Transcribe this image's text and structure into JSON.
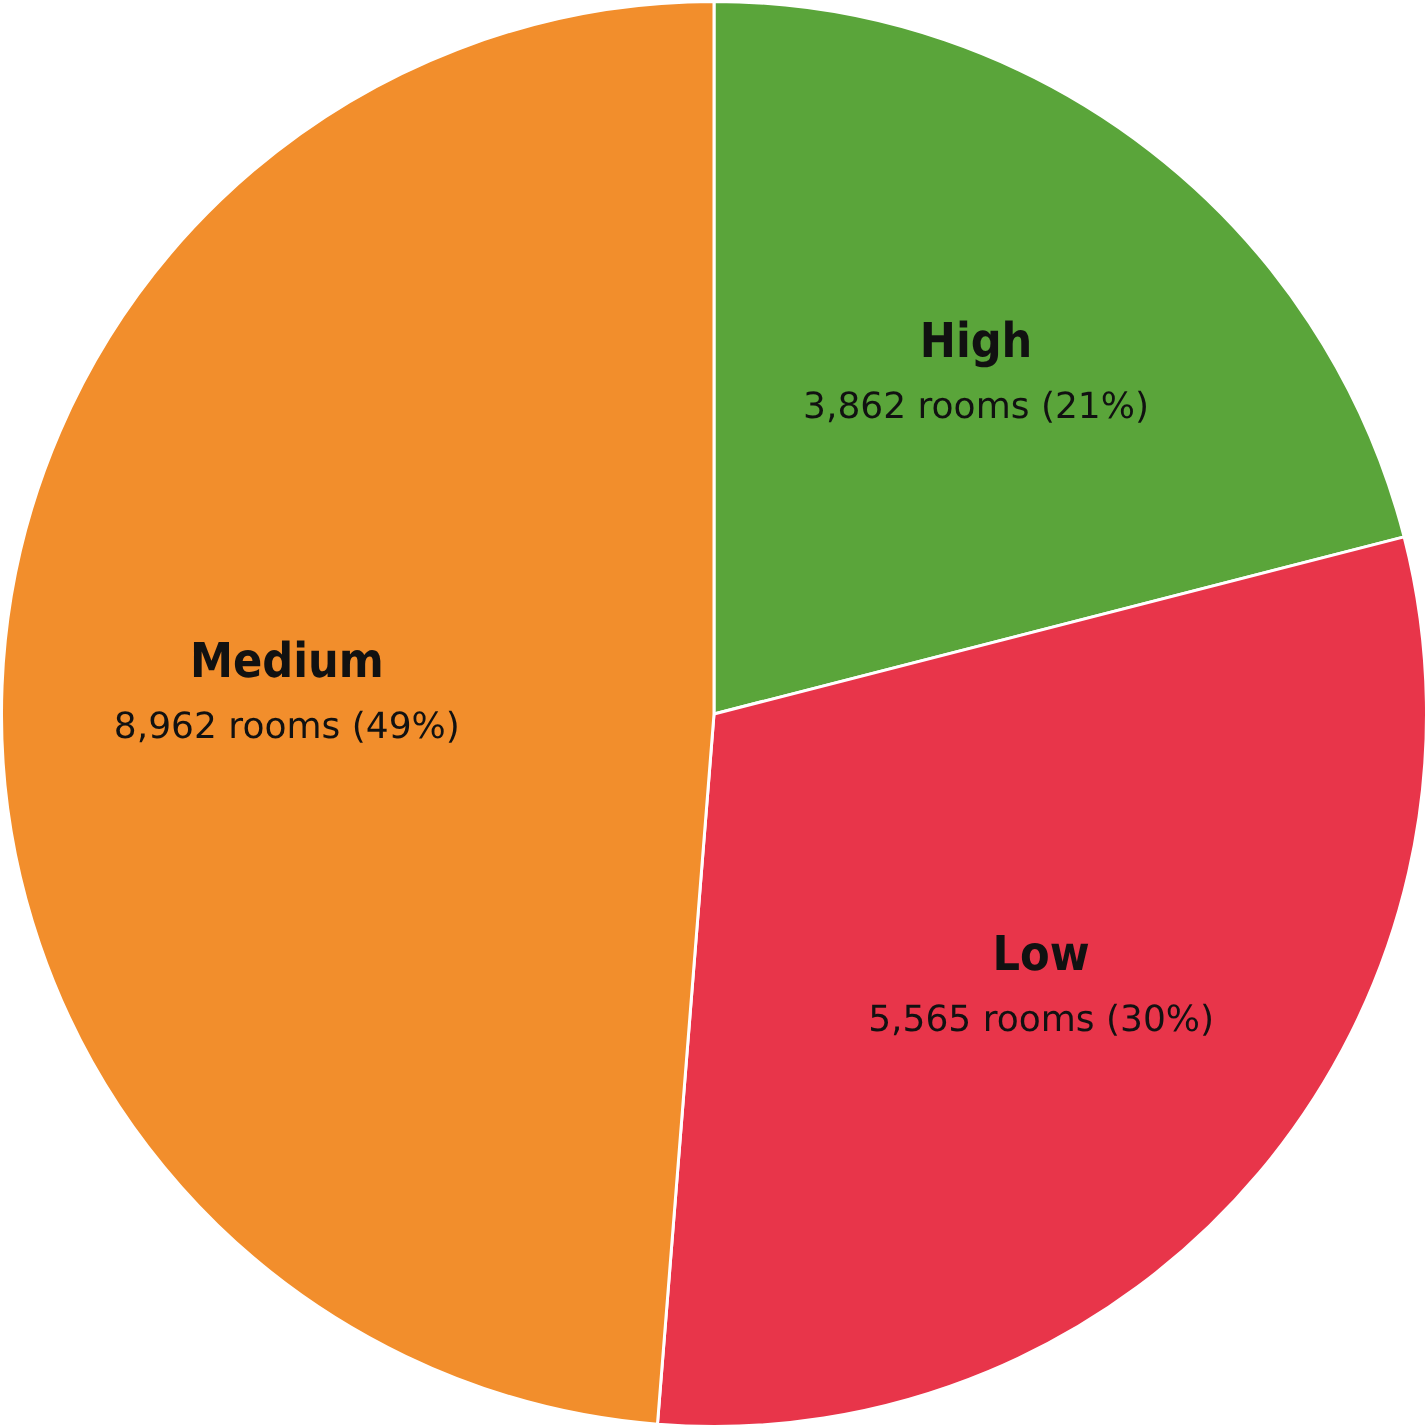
{
  "chart_data": {
    "type": "pie",
    "categories": [
      "High",
      "Low",
      "Medium"
    ],
    "values": [
      3862,
      5565,
      8962
    ],
    "colors": [
      "#5aa53a",
      "#e8354a",
      "#f28e2c"
    ],
    "value_labels": [
      "3,862 rooms (21%)",
      "5,565 rooms (30%)",
      "8,962 rooms (49%)"
    ],
    "legend": false
  }
}
